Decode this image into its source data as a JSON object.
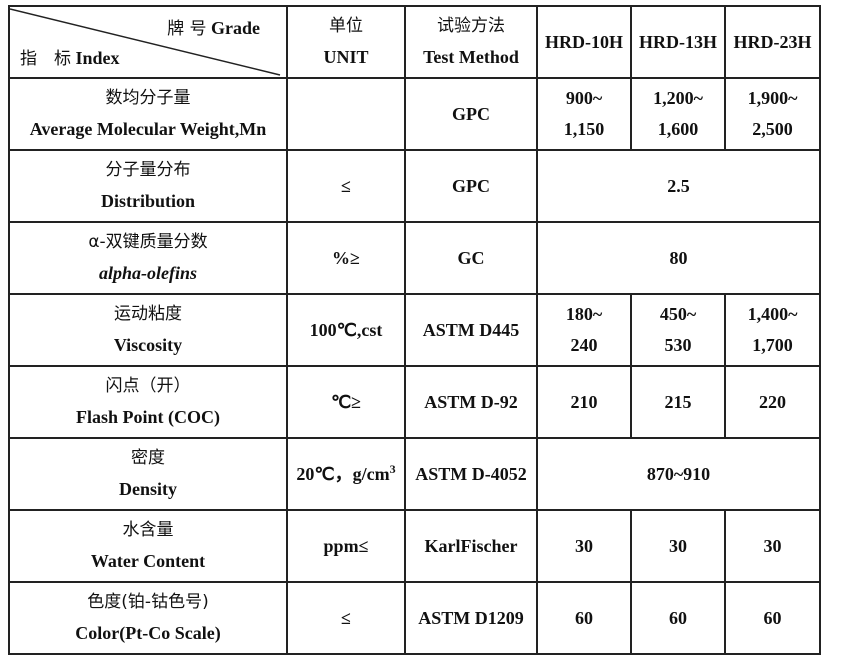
{
  "header": {
    "grade_zh": "牌 号",
    "grade_en": "Grade",
    "index_zh": "指　标",
    "index_en": "Index",
    "unit_zh": "单位",
    "unit_en": "UNIT",
    "method_zh": "试验方法",
    "method_en": "Test Method",
    "grades": [
      "HRD-10H",
      "HRD-13H",
      "HRD-23H"
    ]
  },
  "rows": [
    {
      "zh": "数均分子量",
      "en": "Average Molecular Weight,Mn",
      "unit": "",
      "method": "GPC",
      "values": [
        [
          "900~",
          "1,150"
        ],
        [
          "1,200~",
          "1,600"
        ],
        [
          "1,900~",
          "2,500"
        ]
      ]
    },
    {
      "zh": "分子量分布",
      "en": "Distribution",
      "unit": "≤",
      "method": "GPC",
      "merged": "2.5"
    },
    {
      "zh": "α-双键质量分数",
      "en": "alpha-olefins",
      "italic": true,
      "unit": "%≥",
      "method": "GC",
      "merged": "80"
    },
    {
      "zh": "运动粘度",
      "en": "Viscosity",
      "unit": "100℃,cst",
      "method": "ASTM D445",
      "values": [
        [
          "180~",
          "240"
        ],
        [
          "450~",
          "530"
        ],
        [
          "1,400~",
          "1,700"
        ]
      ]
    },
    {
      "zh": "闪点（开）",
      "en": "Flash Point (COC)",
      "unit": "℃≥",
      "method": "ASTM D-92",
      "values": [
        [
          "210"
        ],
        [
          "215"
        ],
        [
          "220"
        ]
      ]
    },
    {
      "zh": "密度",
      "en": "Density",
      "unit": "20℃，g/cm",
      "unit_sup": "3",
      "method": "ASTM D-4052",
      "merged": "870~910"
    },
    {
      "zh": "水含量",
      "en": "Water Content",
      "unit": "ppm≤",
      "method": "KarlFischer",
      "values": [
        [
          "30"
        ],
        [
          "30"
        ],
        [
          "30"
        ]
      ]
    },
    {
      "zh": "色度(铂-钴色号)",
      "en": "Color(Pt-Co Scale)",
      "unit": "≤",
      "method": "ASTM D1209",
      "values": [
        [
          "60"
        ],
        [
          "60"
        ],
        [
          "60"
        ]
      ]
    }
  ]
}
